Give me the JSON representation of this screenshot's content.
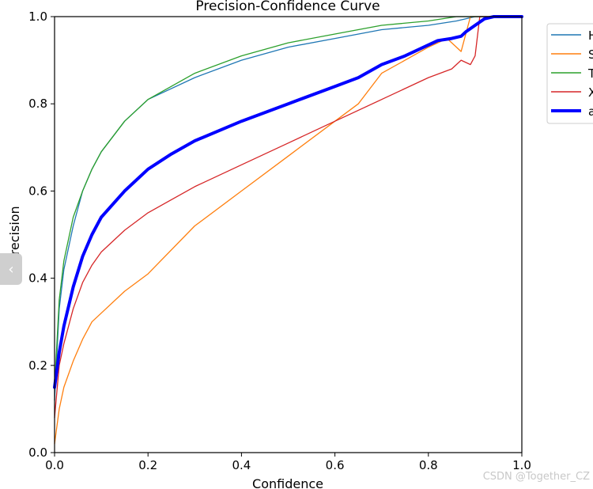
{
  "chart_data": {
    "type": "line",
    "title": "Precision-Confidence Curve",
    "xlabel": "Confidence",
    "ylabel": "Precision",
    "xlim": [
      0,
      1
    ],
    "ylim": [
      0,
      1
    ],
    "xticks": [
      "0.0",
      "0.2",
      "0.4",
      "0.6",
      "0.8",
      "1.0"
    ],
    "yticks": [
      "0.0",
      "0.2",
      "0.4",
      "0.6",
      "0.8",
      "1.0"
    ],
    "grid": false,
    "legend_position": "outside-top-right",
    "series": [
      {
        "name": "H",
        "color": "#1f77b4",
        "x": [
          0,
          0.01,
          0.02,
          0.04,
          0.06,
          0.08,
          0.1,
          0.15,
          0.2,
          0.3,
          0.4,
          0.5,
          0.6,
          0.7,
          0.8,
          0.86,
          0.9,
          1.0
        ],
        "y": [
          0.12,
          0.33,
          0.42,
          0.52,
          0.6,
          0.65,
          0.69,
          0.76,
          0.81,
          0.86,
          0.9,
          0.93,
          0.95,
          0.97,
          0.98,
          0.99,
          1.0,
          1.0
        ]
      },
      {
        "name": "S",
        "color": "#ff7f0e",
        "x": [
          0,
          0.01,
          0.02,
          0.04,
          0.06,
          0.08,
          0.1,
          0.15,
          0.2,
          0.3,
          0.4,
          0.5,
          0.6,
          0.65,
          0.7,
          0.75,
          0.8,
          0.84,
          0.86,
          0.87,
          0.88,
          0.89,
          0.9,
          1.0
        ],
        "y": [
          0.02,
          0.1,
          0.15,
          0.21,
          0.26,
          0.3,
          0.32,
          0.37,
          0.41,
          0.52,
          0.6,
          0.68,
          0.76,
          0.8,
          0.87,
          0.9,
          0.93,
          0.95,
          0.93,
          0.92,
          0.96,
          1.0,
          1.0,
          1.0
        ]
      },
      {
        "name": "T",
        "color": "#2ca02c",
        "x": [
          0,
          0.01,
          0.02,
          0.04,
          0.06,
          0.08,
          0.1,
          0.15,
          0.2,
          0.3,
          0.4,
          0.5,
          0.6,
          0.7,
          0.8,
          0.86,
          0.9,
          1.0
        ],
        "y": [
          0.15,
          0.35,
          0.44,
          0.54,
          0.6,
          0.65,
          0.69,
          0.76,
          0.81,
          0.87,
          0.91,
          0.94,
          0.96,
          0.98,
          0.99,
          1.0,
          1.0,
          1.0
        ]
      },
      {
        "name": "X",
        "color": "#d62728",
        "x": [
          0,
          0.01,
          0.02,
          0.04,
          0.06,
          0.08,
          0.1,
          0.15,
          0.2,
          0.3,
          0.4,
          0.5,
          0.6,
          0.7,
          0.8,
          0.85,
          0.87,
          0.89,
          0.9,
          0.91,
          1.0
        ],
        "y": [
          0.08,
          0.2,
          0.25,
          0.33,
          0.39,
          0.43,
          0.46,
          0.51,
          0.55,
          0.61,
          0.66,
          0.71,
          0.76,
          0.81,
          0.86,
          0.88,
          0.9,
          0.89,
          0.91,
          1.0,
          1.0
        ]
      },
      {
        "name": "a",
        "color": "#0000ff",
        "x": [
          0,
          0.01,
          0.02,
          0.04,
          0.06,
          0.08,
          0.1,
          0.15,
          0.2,
          0.25,
          0.3,
          0.4,
          0.5,
          0.6,
          0.65,
          0.7,
          0.75,
          0.8,
          0.82,
          0.85,
          0.87,
          0.88,
          0.9,
          0.92,
          0.94,
          1.0
        ],
        "y": [
          0.15,
          0.23,
          0.29,
          0.38,
          0.45,
          0.5,
          0.54,
          0.6,
          0.65,
          0.685,
          0.715,
          0.76,
          0.8,
          0.84,
          0.86,
          0.89,
          0.91,
          0.935,
          0.945,
          0.95,
          0.955,
          0.965,
          0.98,
          0.995,
          1.0,
          1.0
        ]
      }
    ]
  },
  "watermark": "CSDN @Together_CZ",
  "side_tab_glyph": "‹"
}
